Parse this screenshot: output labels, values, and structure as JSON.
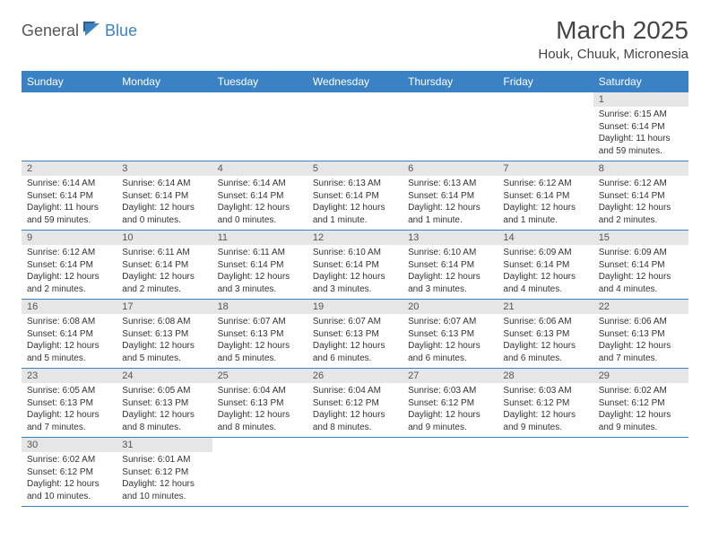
{
  "brand": {
    "general": "General",
    "blue": "Blue"
  },
  "title": "March 2025",
  "location": "Houk, Chuuk, Micronesia",
  "colors": {
    "header_bg": "#3b82c4",
    "header_fg": "#ffffff",
    "daynum_bg": "#e6e6e6",
    "border": "#3b82c4",
    "text": "#333333",
    "brand_blue": "#3b82c4"
  },
  "weekdays": [
    "Sunday",
    "Monday",
    "Tuesday",
    "Wednesday",
    "Thursday",
    "Friday",
    "Saturday"
  ],
  "weeks": [
    [
      {
        "day": ""
      },
      {
        "day": ""
      },
      {
        "day": ""
      },
      {
        "day": ""
      },
      {
        "day": ""
      },
      {
        "day": ""
      },
      {
        "day": "1",
        "sunrise": "Sunrise: 6:15 AM",
        "sunset": "Sunset: 6:14 PM",
        "daylight": "Daylight: 11 hours and 59 minutes."
      }
    ],
    [
      {
        "day": "2",
        "sunrise": "Sunrise: 6:14 AM",
        "sunset": "Sunset: 6:14 PM",
        "daylight": "Daylight: 11 hours and 59 minutes."
      },
      {
        "day": "3",
        "sunrise": "Sunrise: 6:14 AM",
        "sunset": "Sunset: 6:14 PM",
        "daylight": "Daylight: 12 hours and 0 minutes."
      },
      {
        "day": "4",
        "sunrise": "Sunrise: 6:14 AM",
        "sunset": "Sunset: 6:14 PM",
        "daylight": "Daylight: 12 hours and 0 minutes."
      },
      {
        "day": "5",
        "sunrise": "Sunrise: 6:13 AM",
        "sunset": "Sunset: 6:14 PM",
        "daylight": "Daylight: 12 hours and 1 minute."
      },
      {
        "day": "6",
        "sunrise": "Sunrise: 6:13 AM",
        "sunset": "Sunset: 6:14 PM",
        "daylight": "Daylight: 12 hours and 1 minute."
      },
      {
        "day": "7",
        "sunrise": "Sunrise: 6:12 AM",
        "sunset": "Sunset: 6:14 PM",
        "daylight": "Daylight: 12 hours and 1 minute."
      },
      {
        "day": "8",
        "sunrise": "Sunrise: 6:12 AM",
        "sunset": "Sunset: 6:14 PM",
        "daylight": "Daylight: 12 hours and 2 minutes."
      }
    ],
    [
      {
        "day": "9",
        "sunrise": "Sunrise: 6:12 AM",
        "sunset": "Sunset: 6:14 PM",
        "daylight": "Daylight: 12 hours and 2 minutes."
      },
      {
        "day": "10",
        "sunrise": "Sunrise: 6:11 AM",
        "sunset": "Sunset: 6:14 PM",
        "daylight": "Daylight: 12 hours and 2 minutes."
      },
      {
        "day": "11",
        "sunrise": "Sunrise: 6:11 AM",
        "sunset": "Sunset: 6:14 PM",
        "daylight": "Daylight: 12 hours and 3 minutes."
      },
      {
        "day": "12",
        "sunrise": "Sunrise: 6:10 AM",
        "sunset": "Sunset: 6:14 PM",
        "daylight": "Daylight: 12 hours and 3 minutes."
      },
      {
        "day": "13",
        "sunrise": "Sunrise: 6:10 AM",
        "sunset": "Sunset: 6:14 PM",
        "daylight": "Daylight: 12 hours and 3 minutes."
      },
      {
        "day": "14",
        "sunrise": "Sunrise: 6:09 AM",
        "sunset": "Sunset: 6:14 PM",
        "daylight": "Daylight: 12 hours and 4 minutes."
      },
      {
        "day": "15",
        "sunrise": "Sunrise: 6:09 AM",
        "sunset": "Sunset: 6:14 PM",
        "daylight": "Daylight: 12 hours and 4 minutes."
      }
    ],
    [
      {
        "day": "16",
        "sunrise": "Sunrise: 6:08 AM",
        "sunset": "Sunset: 6:14 PM",
        "daylight": "Daylight: 12 hours and 5 minutes."
      },
      {
        "day": "17",
        "sunrise": "Sunrise: 6:08 AM",
        "sunset": "Sunset: 6:13 PM",
        "daylight": "Daylight: 12 hours and 5 minutes."
      },
      {
        "day": "18",
        "sunrise": "Sunrise: 6:07 AM",
        "sunset": "Sunset: 6:13 PM",
        "daylight": "Daylight: 12 hours and 5 minutes."
      },
      {
        "day": "19",
        "sunrise": "Sunrise: 6:07 AM",
        "sunset": "Sunset: 6:13 PM",
        "daylight": "Daylight: 12 hours and 6 minutes."
      },
      {
        "day": "20",
        "sunrise": "Sunrise: 6:07 AM",
        "sunset": "Sunset: 6:13 PM",
        "daylight": "Daylight: 12 hours and 6 minutes."
      },
      {
        "day": "21",
        "sunrise": "Sunrise: 6:06 AM",
        "sunset": "Sunset: 6:13 PM",
        "daylight": "Daylight: 12 hours and 6 minutes."
      },
      {
        "day": "22",
        "sunrise": "Sunrise: 6:06 AM",
        "sunset": "Sunset: 6:13 PM",
        "daylight": "Daylight: 12 hours and 7 minutes."
      }
    ],
    [
      {
        "day": "23",
        "sunrise": "Sunrise: 6:05 AM",
        "sunset": "Sunset: 6:13 PM",
        "daylight": "Daylight: 12 hours and 7 minutes."
      },
      {
        "day": "24",
        "sunrise": "Sunrise: 6:05 AM",
        "sunset": "Sunset: 6:13 PM",
        "daylight": "Daylight: 12 hours and 8 minutes."
      },
      {
        "day": "25",
        "sunrise": "Sunrise: 6:04 AM",
        "sunset": "Sunset: 6:13 PM",
        "daylight": "Daylight: 12 hours and 8 minutes."
      },
      {
        "day": "26",
        "sunrise": "Sunrise: 6:04 AM",
        "sunset": "Sunset: 6:12 PM",
        "daylight": "Daylight: 12 hours and 8 minutes."
      },
      {
        "day": "27",
        "sunrise": "Sunrise: 6:03 AM",
        "sunset": "Sunset: 6:12 PM",
        "daylight": "Daylight: 12 hours and 9 minutes."
      },
      {
        "day": "28",
        "sunrise": "Sunrise: 6:03 AM",
        "sunset": "Sunset: 6:12 PM",
        "daylight": "Daylight: 12 hours and 9 minutes."
      },
      {
        "day": "29",
        "sunrise": "Sunrise: 6:02 AM",
        "sunset": "Sunset: 6:12 PM",
        "daylight": "Daylight: 12 hours and 9 minutes."
      }
    ],
    [
      {
        "day": "30",
        "sunrise": "Sunrise: 6:02 AM",
        "sunset": "Sunset: 6:12 PM",
        "daylight": "Daylight: 12 hours and 10 minutes."
      },
      {
        "day": "31",
        "sunrise": "Sunrise: 6:01 AM",
        "sunset": "Sunset: 6:12 PM",
        "daylight": "Daylight: 12 hours and 10 minutes."
      },
      {
        "day": ""
      },
      {
        "day": ""
      },
      {
        "day": ""
      },
      {
        "day": ""
      },
      {
        "day": ""
      }
    ]
  ]
}
